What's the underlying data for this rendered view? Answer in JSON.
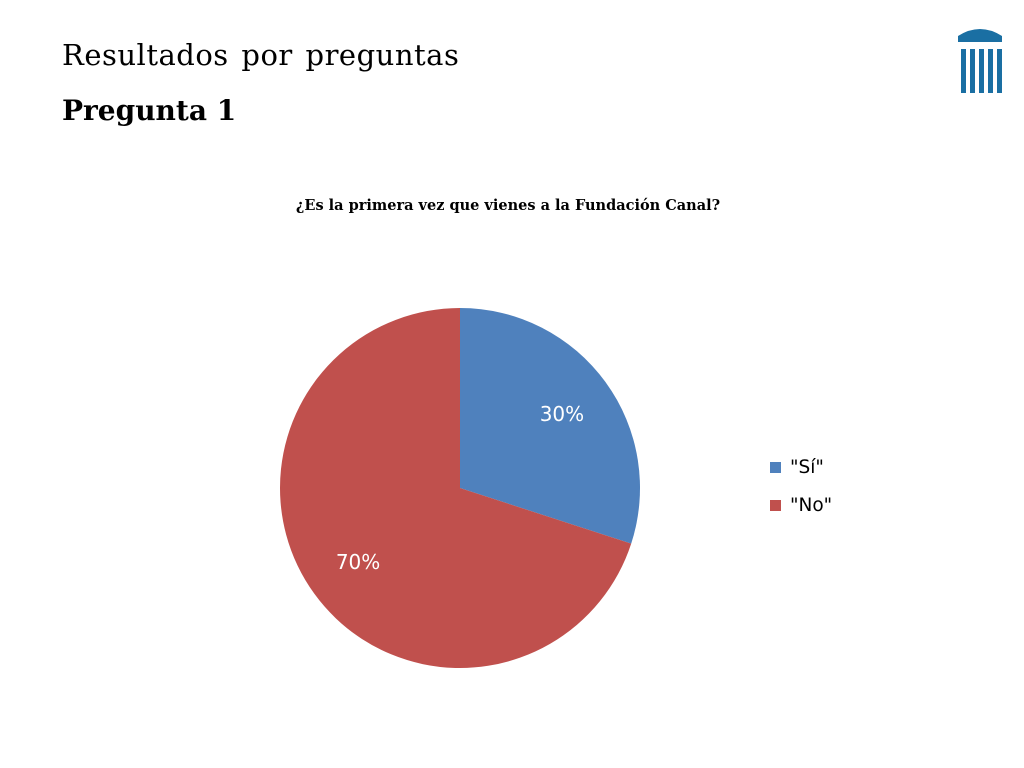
{
  "slide": {
    "heading": "Resultados por preguntas",
    "subheading": "Pregunta 1"
  },
  "logo": {
    "icon": "column-building-icon",
    "color": "#1a6fa3"
  },
  "chart_data": {
    "type": "pie",
    "title": "¿Es la primera vez que vienes a la Fundación Canal?",
    "categories": [
      "\"Sí\"",
      "\"No\""
    ],
    "values": [
      30,
      70
    ],
    "labels": [
      "30%",
      "70%"
    ],
    "colors": [
      "#4f81bd",
      "#c0504d"
    ],
    "legend_position": "right",
    "start_angle": "top",
    "direction": "clockwise"
  }
}
